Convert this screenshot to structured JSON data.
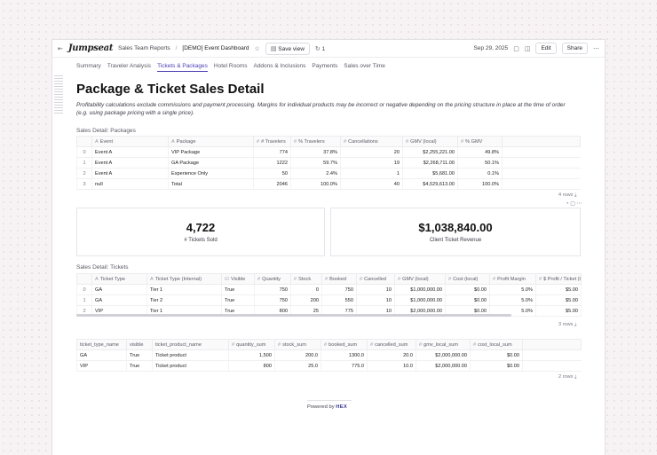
{
  "header": {
    "logo": "Jumpseat",
    "breadcrumb_parent": "Sales Team Reports",
    "breadcrumb_sep": "/",
    "breadcrumb_current": "[DEMO] Event Dashboard",
    "save_view_label": "Save view",
    "version_count": "1",
    "date": "Sep 29, 2025",
    "edit_label": "Edit",
    "share_label": "Share"
  },
  "tabs": [
    "Summary",
    "Traveler Analysis",
    "Tickets & Packages",
    "Hotel Rooms",
    "Addons & Inclusions",
    "Payments",
    "Sales over Time"
  ],
  "active_tab": "Tickets & Packages",
  "page": {
    "title": "Package & Ticket Sales Detail",
    "subtitle": "Profitability calculations exclude commissions and payment processing. Margins for individual products may be incorrect or negative depending on the pricing structure in place at the time of order (e.g. using package pricing with a single price)."
  },
  "packages": {
    "section_title": "Sales Detail: Packages",
    "columns": [
      "Event",
      "Package",
      "# Travelers",
      "% Travelers",
      "Cancellations",
      "GMV (local)",
      "% GMV"
    ],
    "rows": [
      [
        "0",
        "Event A",
        "VIP Package",
        "774",
        "37.8%",
        "20",
        "$2,255,221.00",
        "49.8%"
      ],
      [
        "1",
        "Event A",
        "GA Package",
        "1222",
        "59.7%",
        "19",
        "$2,268,711.00",
        "50.1%"
      ],
      [
        "2",
        "Event A",
        "Experience Only",
        "50",
        "2.4%",
        "1",
        "$5,681.00",
        "0.1%"
      ],
      [
        "3",
        "null",
        "Total",
        "2046",
        "100.0%",
        "40",
        "$4,529,613.00",
        "100.0%"
      ]
    ],
    "row_count": "4 rows"
  },
  "metrics": [
    {
      "value": "4,722",
      "label": "# Tickets Sold"
    },
    {
      "value": "$1,038,840.00",
      "label": "Client Ticket Revenue"
    }
  ],
  "tickets": {
    "section_title": "Sales Detail: Tickets",
    "columns": [
      "Ticket Type",
      "Ticket Type (Internal)",
      "Visible",
      "Quantity",
      "Stock",
      "Booked",
      "Cancelled",
      "GMV (local)",
      "Cost (local)",
      "Profit Margin",
      "$ Profit / Ticket (lo..."
    ],
    "rows": [
      [
        "0",
        "GA",
        "Tier 1",
        "True",
        "750",
        "0",
        "750",
        "10",
        "$1,000,000.00",
        "$0.00",
        "5.0%",
        "$5.00"
      ],
      [
        "1",
        "GA",
        "Tier 2",
        "True",
        "750",
        "200",
        "550",
        "10",
        "$1,000,000.00",
        "$0.00",
        "5.0%",
        "$5.00"
      ],
      [
        "2",
        "VIP",
        "Tier 1",
        "True",
        "800",
        "25",
        "775",
        "10",
        "$2,000,000.00",
        "$0.00",
        "5.0%",
        "$5.00"
      ]
    ],
    "row_count": "3 rows"
  },
  "summary": {
    "columns": [
      "ticket_type_name",
      "visible",
      "ticket_product_name",
      "quantity_sum",
      "stock_sum",
      "booked_sum",
      "cancelled_sum",
      "gmv_local_sum",
      "cost_local_sum"
    ],
    "rows": [
      [
        "GA",
        "True",
        "Ticket product",
        "1,500",
        "200.0",
        "1300.0",
        "20.0",
        "$2,000,000.00",
        "$0.00"
      ],
      [
        "VIP",
        "True",
        "Ticket product",
        "800",
        "25.0",
        "775.0",
        "10.0",
        "$2,000,000.00",
        "$0.00"
      ]
    ],
    "row_count": "2 rows"
  },
  "footer": {
    "powered_by": "Powered by",
    "brand": "HEX"
  }
}
